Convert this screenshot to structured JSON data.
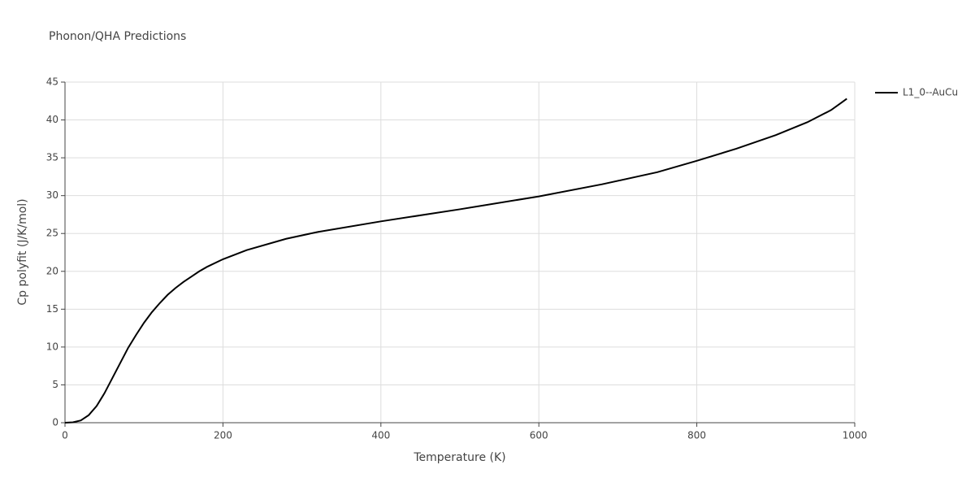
{
  "chart_data": {
    "type": "line",
    "title": "Phonon/QHA Predictions",
    "x_label": "Temperature (K)",
    "y_label": "Cp polyfit (J/K/mol)",
    "x": [
      0,
      10,
      20,
      30,
      40,
      50,
      60,
      70,
      80,
      90,
      100,
      110,
      120,
      130,
      140,
      150,
      160,
      170,
      180,
      200,
      230,
      280,
      320,
      400,
      500,
      600,
      680,
      750,
      800,
      850,
      900,
      940,
      970,
      990
    ],
    "series": [
      {
        "name": "L1_0--AuCu",
        "color": "#000000",
        "values": [
          0,
          0.05,
          0.3,
          1.0,
          2.2,
          3.9,
          5.9,
          7.9,
          9.9,
          11.6,
          13.2,
          14.6,
          15.8,
          16.9,
          17.8,
          18.6,
          19.3,
          20.0,
          20.6,
          21.6,
          22.8,
          24.3,
          25.2,
          26.6,
          28.2,
          29.9,
          31.5,
          33.1,
          34.6,
          36.2,
          38.0,
          39.7,
          41.3,
          42.8
        ]
      }
    ],
    "xlim": [
      0,
      1000
    ],
    "xticks": [
      0,
      200,
      400,
      600,
      800,
      1000
    ],
    "ylim": [
      0,
      45
    ],
    "yticks": [
      0,
      5,
      10,
      15,
      20,
      25,
      30,
      35,
      40,
      45
    ],
    "grid": true,
    "legend": "right"
  }
}
